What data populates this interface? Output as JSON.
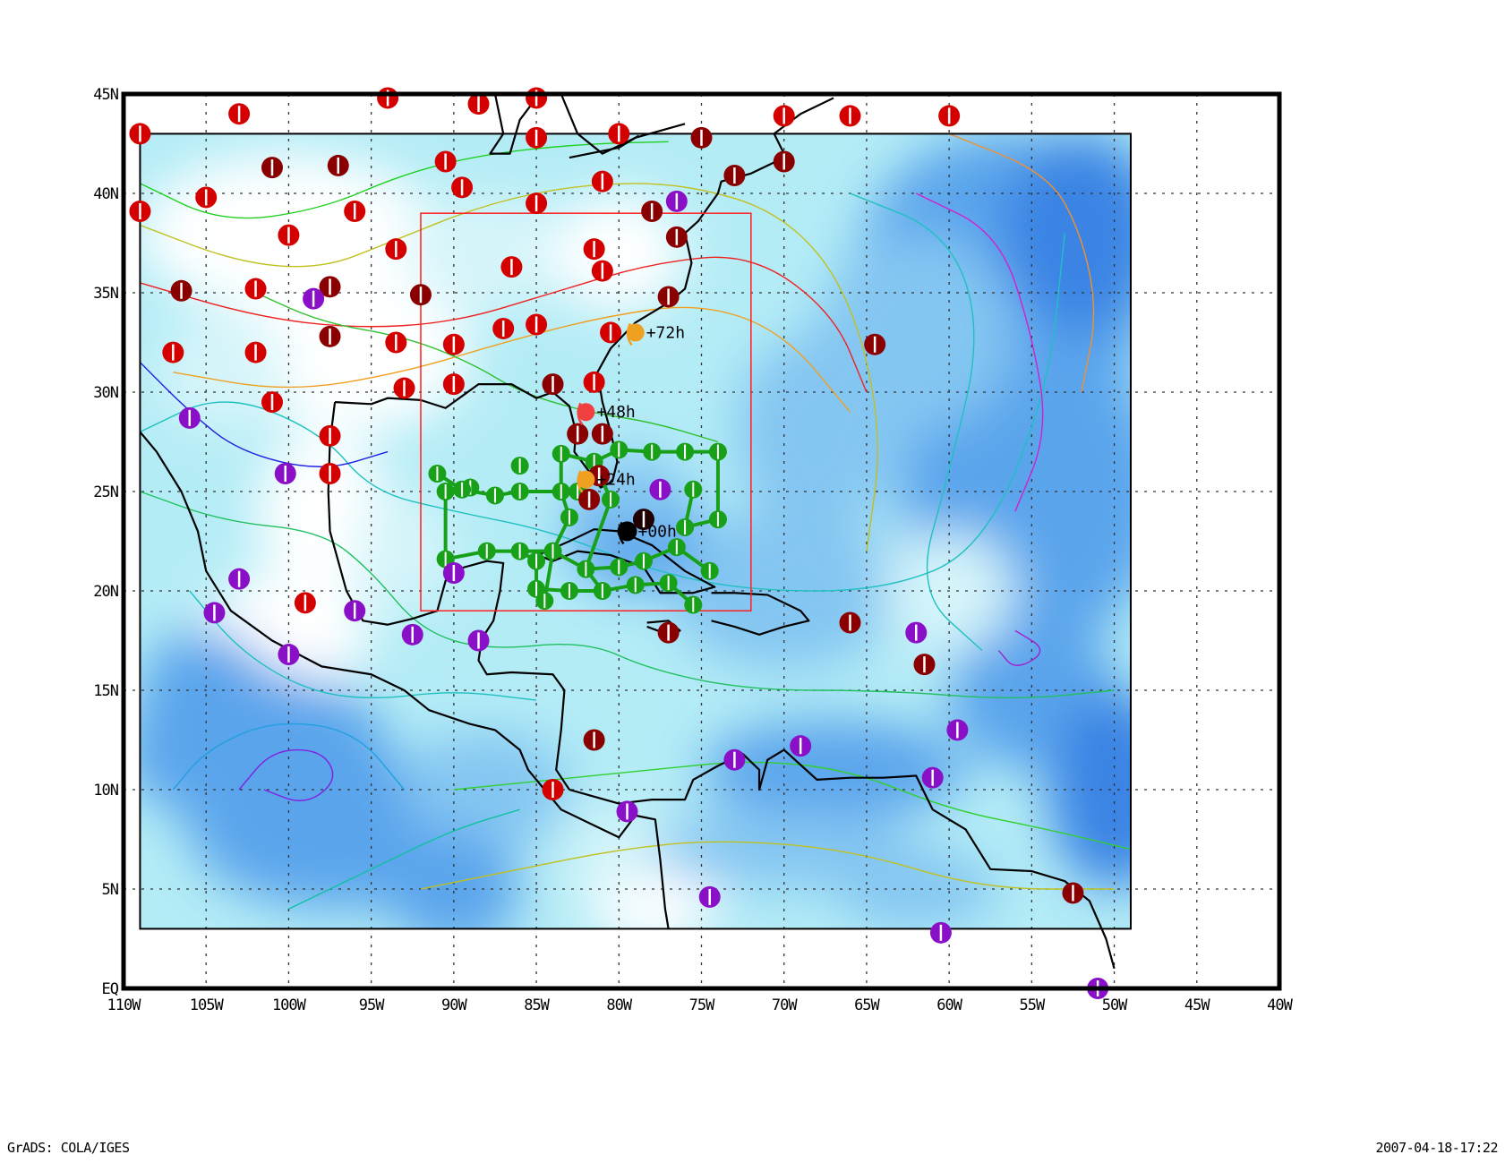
{
  "map": {
    "lon_range": [
      -110,
      -40
    ],
    "lat_range": [
      0,
      45
    ],
    "data_extent": {
      "lon": [
        -109,
        -49
      ],
      "lat": [
        3,
        43
      ]
    },
    "focus_box": {
      "lon": [
        -92,
        -72
      ],
      "lat": [
        19,
        39
      ]
    },
    "x_ticks": [
      "110W",
      "105W",
      "100W",
      "95W",
      "90W",
      "85W",
      "80W",
      "75W",
      "70W",
      "65W",
      "60W",
      "55W",
      "50W",
      "45W",
      "40W"
    ],
    "y_ticks": [
      "EQ",
      "5N",
      "10N",
      "15N",
      "20N",
      "25N",
      "30N",
      "35N",
      "40N",
      "45N"
    ],
    "grid": true,
    "colors": {
      "shade_levels": [
        "#ffffff",
        "#d6f5fa",
        "#b4ecf6",
        "#84c6f2",
        "#5aa4ec",
        "#3a84e4"
      ],
      "coast": "#000000",
      "focus_box": "#ff2020",
      "track": "#18a018"
    }
  },
  "forecast_track": [
    {
      "label": "+00h",
      "lon": -79.5,
      "lat": 23,
      "color": "#000000"
    },
    {
      "label": "+24h",
      "lon": -82,
      "lat": 25.6,
      "color": "#f0a020"
    },
    {
      "label": "+48h",
      "lon": -82,
      "lat": 29,
      "color": "#f04040"
    },
    {
      "label": "+72h",
      "lon": -79,
      "lat": 33,
      "color": "#f0a020"
    }
  ],
  "station_colors": {
    "red": "#d40000",
    "dark": "#8a0000",
    "purple": "#8a10c8",
    "green": "#12a012",
    "black": "#200000"
  },
  "stations": [
    [
      -109,
      43,
      "red"
    ],
    [
      -103,
      44,
      "red"
    ],
    [
      -94,
      44.8,
      "red"
    ],
    [
      -88.5,
      44.5,
      "red"
    ],
    [
      -85,
      44.8,
      "red"
    ],
    [
      -85,
      42.8,
      "red"
    ],
    [
      -80,
      43,
      "red"
    ],
    [
      -70,
      43.9,
      "red"
    ],
    [
      -66,
      43.9,
      "red"
    ],
    [
      -60,
      43.9,
      "red"
    ],
    [
      -75,
      42.8,
      "dark"
    ],
    [
      -70,
      41.6,
      "dark"
    ],
    [
      -73,
      40.9,
      "dark"
    ],
    [
      -101,
      41.3,
      "dark"
    ],
    [
      -97,
      41.4,
      "dark"
    ],
    [
      -90.5,
      41.6,
      "red"
    ],
    [
      -89.5,
      40.3,
      "red"
    ],
    [
      -81,
      40.6,
      "red"
    ],
    [
      -85,
      39.5,
      "red"
    ],
    [
      -109,
      39.1,
      "red"
    ],
    [
      -105,
      39.8,
      "red"
    ],
    [
      -96,
      39.1,
      "red"
    ],
    [
      -100,
      37.9,
      "red"
    ],
    [
      -93.5,
      37.2,
      "red"
    ],
    [
      -78,
      39.1,
      "dark"
    ],
    [
      -76.5,
      39.6,
      "purple"
    ],
    [
      -76.5,
      37.8,
      "dark"
    ],
    [
      -81.5,
      37.2,
      "red"
    ],
    [
      -86.5,
      36.3,
      "red"
    ],
    [
      -81,
      36.1,
      "red"
    ],
    [
      -106.5,
      35.1,
      "dark"
    ],
    [
      -102,
      35.2,
      "red"
    ],
    [
      -97.5,
      35.3,
      "dark"
    ],
    [
      -98.5,
      34.7,
      "purple"
    ],
    [
      -92,
      34.9,
      "dark"
    ],
    [
      -77,
      34.8,
      "dark"
    ],
    [
      -107,
      32,
      "red"
    ],
    [
      -102,
      32,
      "red"
    ],
    [
      -97.5,
      32.8,
      "dark"
    ],
    [
      -93.5,
      32.5,
      "red"
    ],
    [
      -90,
      32.4,
      "red"
    ],
    [
      -87,
      33.2,
      "red"
    ],
    [
      -85,
      33.4,
      "red"
    ],
    [
      -80.5,
      33,
      "red"
    ],
    [
      -64.5,
      32.4,
      "dark"
    ],
    [
      -101,
      29.5,
      "red"
    ],
    [
      -93,
      30.2,
      "red"
    ],
    [
      -90,
      30.4,
      "red"
    ],
    [
      -84,
      30.4,
      "dark"
    ],
    [
      -81.5,
      30.5,
      "red"
    ],
    [
      -106,
      28.7,
      "purple"
    ],
    [
      -97.5,
      27.8,
      "red"
    ],
    [
      -82.5,
      27.9,
      "dark"
    ],
    [
      -81,
      27.9,
      "dark"
    ],
    [
      -100.2,
      25.9,
      "purple"
    ],
    [
      -97.5,
      25.9,
      "red"
    ],
    [
      -81.2,
      25.8,
      "dark"
    ],
    [
      -81.8,
      24.6,
      "dark"
    ],
    [
      -77.5,
      25.1,
      "purple"
    ],
    [
      -78.5,
      23.6,
      "black"
    ],
    [
      -103,
      20.6,
      "purple"
    ],
    [
      -90,
      20.9,
      "purple"
    ],
    [
      -99,
      19.4,
      "red"
    ],
    [
      -104.5,
      18.9,
      "purple"
    ],
    [
      -96,
      19,
      "purple"
    ],
    [
      -92.5,
      17.8,
      "purple"
    ],
    [
      -88.5,
      17.5,
      "purple"
    ],
    [
      -77,
      17.9,
      "dark"
    ],
    [
      -66,
      18.4,
      "dark"
    ],
    [
      -62,
      17.9,
      "purple"
    ],
    [
      -100,
      16.8,
      "purple"
    ],
    [
      -61.5,
      16.3,
      "dark"
    ],
    [
      -59.5,
      13,
      "purple"
    ],
    [
      -81.5,
      12.5,
      "dark"
    ],
    [
      -73,
      11.5,
      "purple"
    ],
    [
      -69,
      12.2,
      "purple"
    ],
    [
      -61,
      10.6,
      "purple"
    ],
    [
      -84,
      10,
      "red"
    ],
    [
      -79.5,
      8.9,
      "purple"
    ],
    [
      -74.5,
      4.6,
      "purple"
    ],
    [
      -52.5,
      4.8,
      "dark"
    ],
    [
      -60.5,
      2.8,
      "purple"
    ],
    [
      -51,
      0,
      "purple"
    ]
  ],
  "track_grid": [
    [
      -91,
      25.9
    ],
    [
      -90.5,
      25
    ],
    [
      -89,
      25.2
    ],
    [
      -88,
      22
    ],
    [
      -87.5,
      24.8
    ],
    [
      -86,
      22
    ],
    [
      -86,
      25
    ],
    [
      -85,
      20.1
    ],
    [
      -85,
      21.5
    ],
    [
      -84.5,
      19.5
    ],
    [
      -84,
      22
    ],
    [
      -83.5,
      26.9
    ],
    [
      -83.5,
      25
    ],
    [
      -83,
      20
    ],
    [
      -82.5,
      25
    ],
    [
      -82,
      21.1
    ],
    [
      -81.5,
      26.5
    ],
    [
      -81,
      20
    ],
    [
      -80,
      27.1
    ],
    [
      -80,
      21.2
    ],
    [
      -79,
      20.3
    ],
    [
      -78,
      27
    ],
    [
      -77,
      20.4
    ],
    [
      -76,
      27
    ],
    [
      -76,
      23.2
    ],
    [
      -75.5,
      25.1
    ],
    [
      -75.5,
      19.3
    ],
    [
      -74,
      27
    ],
    [
      -74,
      23.6
    ],
    [
      -74.5,
      21
    ],
    [
      -76.5,
      22.2
    ],
    [
      -90.5,
      21.6
    ],
    [
      -89.5,
      25.1
    ],
    [
      -86,
      26.3
    ],
    [
      -83,
      23.7
    ],
    [
      -78.5,
      21.5
    ],
    [
      -80.5,
      24.6
    ]
  ],
  "footer": {
    "left": "GrADS: COLA/IGES",
    "right": "2007-04-18-17:22"
  }
}
